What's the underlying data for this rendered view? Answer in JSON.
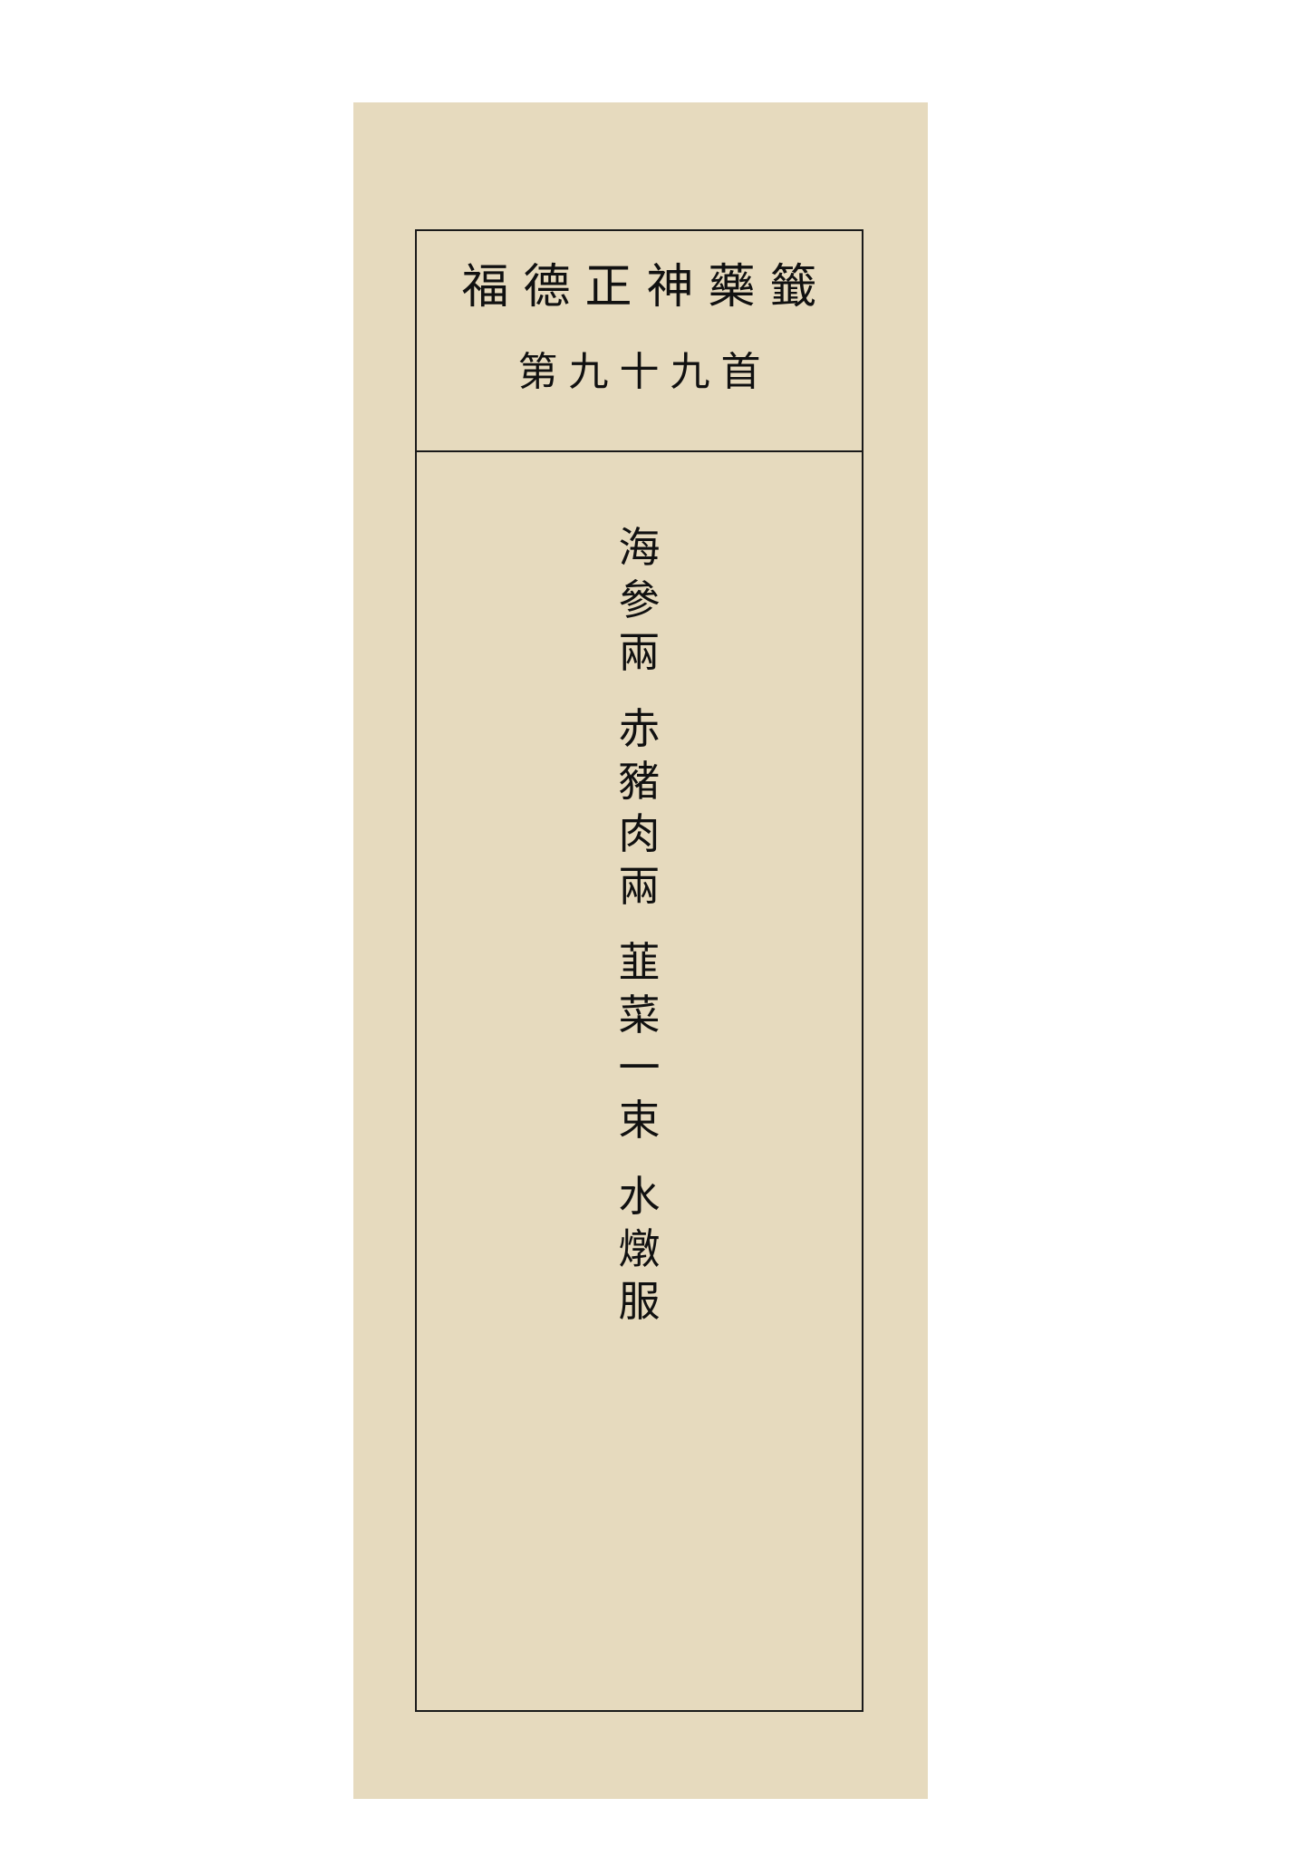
{
  "slip": {
    "title": "福德正神藥籤",
    "number": "第九十九首",
    "prescription": [
      "海參兩",
      "赤豬肉兩",
      "韮菜一束",
      "水燉服"
    ]
  },
  "colors": {
    "paper": "#e6dabe",
    "ink": "#111111",
    "border": "#1a1a1a",
    "background": "#ffffff"
  }
}
